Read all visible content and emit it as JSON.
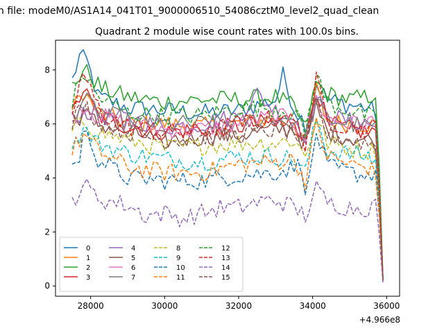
{
  "suptitle": "n file: modeM0/AS1A14_041T01_9000006510_54086cztM0_level2_quad_clean",
  "chart_data": {
    "type": "line",
    "title": "Quadrant 2 module wise count rates with 100.0s bins.",
    "xlabel": "",
    "ylabel": "",
    "x_offset_label": "+4.966e8",
    "xlim": [
      27050,
      36350
    ],
    "ylim": [
      -0.38,
      9.1
    ],
    "xticks": [
      28000,
      30000,
      32000,
      34000,
      36000
    ],
    "yticks": [
      0,
      2,
      4,
      6,
      8
    ],
    "grid": false,
    "legend": {
      "position": "lower-left",
      "columns": 4
    },
    "x_range": [
      27500,
      35900
    ],
    "series": [
      {
        "name": "0",
        "color": "#1f77b4",
        "dash": "solid",
        "points": [
          [
            27500,
            7.6
          ],
          [
            27700,
            8.5
          ],
          [
            27900,
            8.3
          ],
          [
            28200,
            7.0
          ],
          [
            29000,
            6.6
          ],
          [
            30000,
            6.5
          ],
          [
            31000,
            6.4
          ],
          [
            32000,
            6.5
          ],
          [
            33000,
            6.9
          ],
          [
            33200,
            7.8
          ],
          [
            33500,
            6.6
          ],
          [
            33700,
            6.2
          ],
          [
            33900,
            5.9
          ],
          [
            34100,
            7.5
          ],
          [
            34400,
            6.9
          ],
          [
            35000,
            6.7
          ],
          [
            35500,
            6.6
          ],
          [
            35750,
            6.4
          ],
          [
            35850,
            1.5
          ],
          [
            35900,
            0.3
          ]
        ]
      },
      {
        "name": "1",
        "color": "#ff7f0e",
        "dash": "solid",
        "points": [
          [
            27500,
            6.5
          ],
          [
            27800,
            7.2
          ],
          [
            28200,
            6.4
          ],
          [
            29000,
            6.0
          ],
          [
            30000,
            6.0
          ],
          [
            31000,
            5.9
          ],
          [
            32000,
            6.0
          ],
          [
            33000,
            6.2
          ],
          [
            33500,
            6.0
          ],
          [
            33800,
            5.3
          ],
          [
            34100,
            7.3
          ],
          [
            34400,
            6.1
          ],
          [
            35000,
            6.0
          ],
          [
            35500,
            6.0
          ],
          [
            35750,
            5.9
          ],
          [
            35850,
            1.4
          ],
          [
            35900,
            0.2
          ]
        ]
      },
      {
        "name": "2",
        "color": "#2ca02c",
        "dash": "solid",
        "points": [
          [
            27500,
            7.4
          ],
          [
            27800,
            8.0
          ],
          [
            28000,
            7.8
          ],
          [
            28300,
            7.3
          ],
          [
            29000,
            7.0
          ],
          [
            30000,
            6.8
          ],
          [
            31000,
            6.9
          ],
          [
            32000,
            6.9
          ],
          [
            33000,
            7.0
          ],
          [
            33500,
            6.6
          ],
          [
            33800,
            5.8
          ],
          [
            34100,
            7.5
          ],
          [
            34400,
            7.1
          ],
          [
            35000,
            6.9
          ],
          [
            35500,
            7.0
          ],
          [
            35750,
            7.2
          ],
          [
            35850,
            1.6
          ],
          [
            35900,
            0.3
          ]
        ]
      },
      {
        "name": "3",
        "color": "#d62728",
        "dash": "solid",
        "points": [
          [
            27500,
            6.3
          ],
          [
            27800,
            7.3
          ],
          [
            28200,
            6.3
          ],
          [
            29000,
            5.9
          ],
          [
            30000,
            5.7
          ],
          [
            31000,
            5.8
          ],
          [
            32000,
            5.9
          ],
          [
            33000,
            6.1
          ],
          [
            33500,
            6.2
          ],
          [
            33800,
            5.4
          ],
          [
            34100,
            7.4
          ],
          [
            34400,
            6.0
          ],
          [
            35000,
            5.8
          ],
          [
            35500,
            5.7
          ],
          [
            35750,
            5.8
          ],
          [
            35850,
            1.3
          ],
          [
            35900,
            0.2
          ]
        ]
      },
      {
        "name": "4",
        "color": "#9467bd",
        "dash": "solid",
        "points": [
          [
            27500,
            6.1
          ],
          [
            27800,
            6.5
          ],
          [
            28200,
            6.3
          ],
          [
            29000,
            6.2
          ],
          [
            30000,
            5.9
          ],
          [
            31000,
            6.0
          ],
          [
            32000,
            6.3
          ],
          [
            32500,
            7.1
          ],
          [
            33000,
            6.5
          ],
          [
            33500,
            6.2
          ],
          [
            33800,
            5.6
          ],
          [
            34100,
            6.9
          ],
          [
            34400,
            6.3
          ],
          [
            35000,
            6.1
          ],
          [
            35500,
            6.0
          ],
          [
            35750,
            5.9
          ],
          [
            35850,
            1.3
          ],
          [
            35900,
            0.2
          ]
        ]
      },
      {
        "name": "5",
        "color": "#8c564b",
        "dash": "solid",
        "points": [
          [
            27500,
            6.0
          ],
          [
            27800,
            6.4
          ],
          [
            28200,
            6.0
          ],
          [
            29000,
            5.7
          ],
          [
            30000,
            5.4
          ],
          [
            31000,
            5.5
          ],
          [
            32000,
            5.6
          ],
          [
            33000,
            5.8
          ],
          [
            33500,
            5.8
          ],
          [
            33800,
            5.2
          ],
          [
            34100,
            6.6
          ],
          [
            34400,
            5.7
          ],
          [
            35000,
            5.5
          ],
          [
            35500,
            5.4
          ],
          [
            35750,
            5.3
          ],
          [
            35850,
            1.2
          ],
          [
            35900,
            0.2
          ]
        ]
      },
      {
        "name": "6",
        "color": "#e377c2",
        "dash": "solid",
        "points": [
          [
            27500,
            6.2
          ],
          [
            27800,
            6.7
          ],
          [
            28200,
            6.3
          ],
          [
            29000,
            6.0
          ],
          [
            30000,
            5.8
          ],
          [
            31000,
            5.8
          ],
          [
            32000,
            6.0
          ],
          [
            33000,
            6.3
          ],
          [
            33500,
            6.1
          ],
          [
            33800,
            5.5
          ],
          [
            34100,
            6.9
          ],
          [
            34400,
            6.2
          ],
          [
            35000,
            6.0
          ],
          [
            35500,
            6.1
          ],
          [
            35750,
            6.0
          ],
          [
            35850,
            1.4
          ],
          [
            35900,
            0.2
          ]
        ]
      },
      {
        "name": "7",
        "color": "#7f7f7f",
        "dash": "solid",
        "points": [
          [
            27500,
            6.3
          ],
          [
            27800,
            6.9
          ],
          [
            28200,
            6.5
          ],
          [
            29000,
            6.1
          ],
          [
            30000,
            6.0
          ],
          [
            31000,
            6.0
          ],
          [
            32000,
            6.1
          ],
          [
            33000,
            6.2
          ],
          [
            33500,
            6.0
          ],
          [
            33800,
            5.5
          ],
          [
            34100,
            6.8
          ],
          [
            34400,
            6.2
          ],
          [
            35000,
            6.0
          ],
          [
            35500,
            5.9
          ],
          [
            35750,
            5.9
          ],
          [
            35850,
            1.3
          ],
          [
            35900,
            0.2
          ]
        ]
      },
      {
        "name": "8",
        "color": "#bcbd22",
        "dash": "dashed",
        "points": [
          [
            27500,
            5.7
          ],
          [
            27800,
            6.1
          ],
          [
            28200,
            5.7
          ],
          [
            29000,
            5.4
          ],
          [
            30000,
            5.1
          ],
          [
            31000,
            5.2
          ],
          [
            32000,
            5.3
          ],
          [
            33000,
            5.3
          ],
          [
            33500,
            5.4
          ],
          [
            33800,
            4.8
          ],
          [
            34100,
            6.2
          ],
          [
            34400,
            5.3
          ],
          [
            35000,
            5.1
          ],
          [
            35500,
            5.0
          ],
          [
            35750,
            5.1
          ],
          [
            35850,
            1.2
          ],
          [
            35900,
            0.2
          ]
        ]
      },
      {
        "name": "9",
        "color": "#17becf",
        "dash": "dashed",
        "points": [
          [
            27500,
            5.2
          ],
          [
            27800,
            5.8
          ],
          [
            28200,
            5.3
          ],
          [
            29000,
            4.9
          ],
          [
            30000,
            4.7
          ],
          [
            31000,
            4.6
          ],
          [
            32000,
            4.8
          ],
          [
            33000,
            4.8
          ],
          [
            33500,
            4.7
          ],
          [
            33800,
            4.2
          ],
          [
            34100,
            6.2
          ],
          [
            34400,
            5.0
          ],
          [
            35000,
            4.9
          ],
          [
            35500,
            4.8
          ],
          [
            35750,
            4.6
          ],
          [
            35850,
            1.1
          ],
          [
            35900,
            0.2
          ]
        ]
      },
      {
        "name": "10",
        "color": "#1f77b4",
        "dash": "dashed",
        "points": [
          [
            27500,
            4.6
          ],
          [
            27650,
            4.4
          ],
          [
            27800,
            5.6
          ],
          [
            28000,
            5.4
          ],
          [
            28200,
            4.7
          ],
          [
            29000,
            4.0
          ],
          [
            30000,
            3.9
          ],
          [
            31000,
            3.9
          ],
          [
            32000,
            4.1
          ],
          [
            33000,
            4.2
          ],
          [
            33500,
            4.4
          ],
          [
            33700,
            4.5
          ],
          [
            33850,
            3.3
          ],
          [
            34100,
            5.7
          ],
          [
            34400,
            4.4
          ],
          [
            35000,
            4.2
          ],
          [
            35500,
            4.1
          ],
          [
            35750,
            4.3
          ],
          [
            35850,
            1.0
          ],
          [
            35900,
            0.2
          ]
        ]
      },
      {
        "name": "11",
        "color": "#ff7f0e",
        "dash": "dashed",
        "points": [
          [
            27500,
            5.0
          ],
          [
            27800,
            5.6
          ],
          [
            28200,
            5.0
          ],
          [
            29000,
            4.4
          ],
          [
            30000,
            4.2
          ],
          [
            31000,
            4.2
          ],
          [
            32000,
            4.5
          ],
          [
            33000,
            4.6
          ],
          [
            33500,
            4.7
          ],
          [
            33800,
            3.9
          ],
          [
            34100,
            6.0
          ],
          [
            34400,
            4.8
          ],
          [
            35000,
            4.5
          ],
          [
            35500,
            4.4
          ],
          [
            35750,
            4.1
          ],
          [
            35850,
            1.0
          ],
          [
            35900,
            0.2
          ]
        ]
      },
      {
        "name": "12",
        "color": "#2ca02c",
        "dash": "dashed",
        "points": [
          [
            27500,
            6.8
          ],
          [
            27800,
            7.9
          ],
          [
            28200,
            7.0
          ],
          [
            29000,
            6.4
          ],
          [
            30000,
            6.3
          ],
          [
            31000,
            6.3
          ],
          [
            32000,
            6.6
          ],
          [
            33000,
            6.6
          ],
          [
            33500,
            6.4
          ],
          [
            33800,
            5.7
          ],
          [
            34100,
            7.8
          ],
          [
            34400,
            6.8
          ],
          [
            35000,
            6.5
          ],
          [
            35500,
            6.3
          ],
          [
            35750,
            6.1
          ],
          [
            35850,
            1.5
          ],
          [
            35900,
            0.3
          ]
        ]
      },
      {
        "name": "13",
        "color": "#d62728",
        "dash": "dashed",
        "points": [
          [
            27500,
            6.4
          ],
          [
            27800,
            7.9
          ],
          [
            28000,
            7.2
          ],
          [
            28300,
            6.4
          ],
          [
            29000,
            5.9
          ],
          [
            30000,
            5.7
          ],
          [
            31000,
            5.7
          ],
          [
            32000,
            6.0
          ],
          [
            33000,
            6.2
          ],
          [
            33500,
            6.1
          ],
          [
            33800,
            5.3
          ],
          [
            34100,
            7.6
          ],
          [
            34400,
            6.1
          ],
          [
            35000,
            5.9
          ],
          [
            35500,
            5.8
          ],
          [
            35750,
            5.9
          ],
          [
            35850,
            1.4
          ],
          [
            35900,
            0.2
          ]
        ]
      },
      {
        "name": "14",
        "color": "#9467bd",
        "dash": "dashed",
        "points": [
          [
            27500,
            3.2
          ],
          [
            27650,
            3.4
          ],
          [
            27800,
            3.8
          ],
          [
            28000,
            3.5
          ],
          [
            28300,
            3.2
          ],
          [
            29000,
            3.0
          ],
          [
            29500,
            2.6
          ],
          [
            30000,
            2.7
          ],
          [
            30500,
            2.5
          ],
          [
            31000,
            2.7
          ],
          [
            31500,
            2.9
          ],
          [
            32000,
            2.9
          ],
          [
            32500,
            3.1
          ],
          [
            33000,
            3.2
          ],
          [
            33500,
            2.9
          ],
          [
            33800,
            2.6
          ],
          [
            34100,
            3.6
          ],
          [
            34400,
            3.1
          ],
          [
            35000,
            2.9
          ],
          [
            35500,
            2.9
          ],
          [
            35750,
            3.0
          ],
          [
            35850,
            0.8
          ],
          [
            35900,
            0.1
          ]
        ]
      },
      {
        "name": "15",
        "color": "#8c564b",
        "dash": "dashed",
        "points": [
          [
            27500,
            6.0
          ],
          [
            27800,
            6.8
          ],
          [
            28200,
            6.1
          ],
          [
            29000,
            5.7
          ],
          [
            30000,
            5.4
          ],
          [
            31000,
            5.5
          ],
          [
            32000,
            5.6
          ],
          [
            33000,
            5.8
          ],
          [
            33500,
            5.7
          ],
          [
            33800,
            5.1
          ],
          [
            34100,
            6.8
          ],
          [
            34400,
            5.6
          ],
          [
            35000,
            5.4
          ],
          [
            35500,
            5.3
          ],
          [
            35750,
            5.2
          ],
          [
            35850,
            1.2
          ],
          [
            35900,
            0.2
          ]
        ]
      }
    ]
  }
}
